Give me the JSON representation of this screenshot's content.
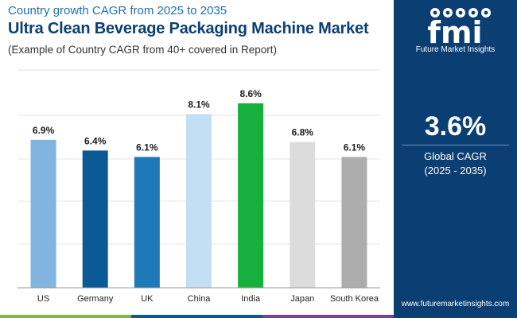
{
  "header": {
    "line1": "Country growth CAGR from 2025 to 2035",
    "title": "Ultra Clean Beverage Packaging Machine Market",
    "subtitle": "(Example of Country CAGR from 40+ covered in Report)"
  },
  "sidebar": {
    "logo_text": "fmi",
    "logo_subtitle": "Future Market Insights",
    "global_value": "3.6%",
    "global_label": "Global CAGR",
    "global_period": "(2025 - 2035)",
    "website": "www.futuremarketinsights.com"
  },
  "colors": {
    "sidebar_bg": "#0b3f73",
    "footer": [
      "#7dbb3b",
      "#0b5a96",
      "#7b3f99"
    ]
  },
  "chart_data": {
    "type": "bar",
    "title": "Ultra Clean Beverage Packaging Machine Market",
    "xlabel": "",
    "ylabel": "",
    "ylim": [
      0,
      8.6
    ],
    "grid": true,
    "categories": [
      "US",
      "Germany",
      "UK",
      "China",
      "India",
      "Japan",
      "South Korea"
    ],
    "values": [
      6.9,
      6.4,
      6.1,
      8.1,
      8.6,
      6.8,
      6.1
    ],
    "value_labels": [
      "6.9%",
      "6.4%",
      "6.1%",
      "8.1%",
      "8.6%",
      "6.8%",
      "6.1%"
    ],
    "bar_colors": [
      "#7fb5e0",
      "#0b5a96",
      "#1f78b8",
      "#c2dff4",
      "#16b13c",
      "#dcdcdc",
      "#adadad"
    ]
  }
}
